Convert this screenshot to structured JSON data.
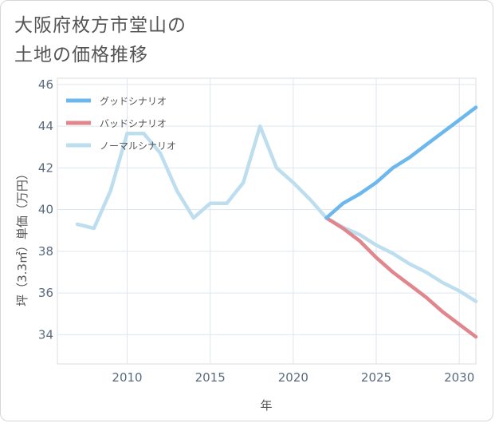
{
  "title": {
    "line1": "大阪府枚方市堂山の",
    "line2": "土地の価格推移"
  },
  "chart_data": {
    "type": "line",
    "xlabel": "年",
    "ylabel": "坪（3.3㎡）単価（万円）",
    "xlim": [
      2005.8,
      2031
    ],
    "ylim": [
      32.6,
      46.3
    ],
    "xticks": [
      2010,
      2015,
      2020,
      2025,
      2030
    ],
    "yticks": [
      34,
      36,
      38,
      40,
      42,
      44,
      46
    ],
    "grid": true,
    "legend_position": "top-left",
    "series": [
      {
        "name": "グッドシナリオ",
        "color": "#6cb8ee",
        "x": [
          2022,
          2023,
          2024,
          2025,
          2026,
          2027,
          2028,
          2029,
          2030,
          2031
        ],
        "y": [
          39.6,
          40.3,
          40.75,
          41.3,
          42.0,
          42.5,
          43.1,
          43.7,
          44.3,
          44.9
        ]
      },
      {
        "name": "バッドシナリオ",
        "color": "#e0868d",
        "x": [
          2022,
          2023,
          2024,
          2025,
          2026,
          2027,
          2028,
          2029,
          2030,
          2031
        ],
        "y": [
          39.6,
          39.1,
          38.5,
          37.7,
          37.0,
          36.4,
          35.8,
          35.1,
          34.5,
          33.9
        ]
      },
      {
        "name": "ノーマルシナリオ",
        "color": "#bcdeee",
        "x": [
          2007,
          2008,
          2009,
          2010,
          2011,
          2012,
          2013,
          2014,
          2015,
          2016,
          2017,
          2018,
          2019,
          2020,
          2021,
          2022,
          2023,
          2024,
          2025,
          2026,
          2027,
          2028,
          2029,
          2030,
          2031
        ],
        "y": [
          39.3,
          39.1,
          40.9,
          43.65,
          43.65,
          42.7,
          40.9,
          39.6,
          40.3,
          40.3,
          41.3,
          44.0,
          42.0,
          41.3,
          40.5,
          39.6,
          39.15,
          38.8,
          38.3,
          37.9,
          37.4,
          37.0,
          36.5,
          36.1,
          35.6
        ]
      }
    ]
  }
}
